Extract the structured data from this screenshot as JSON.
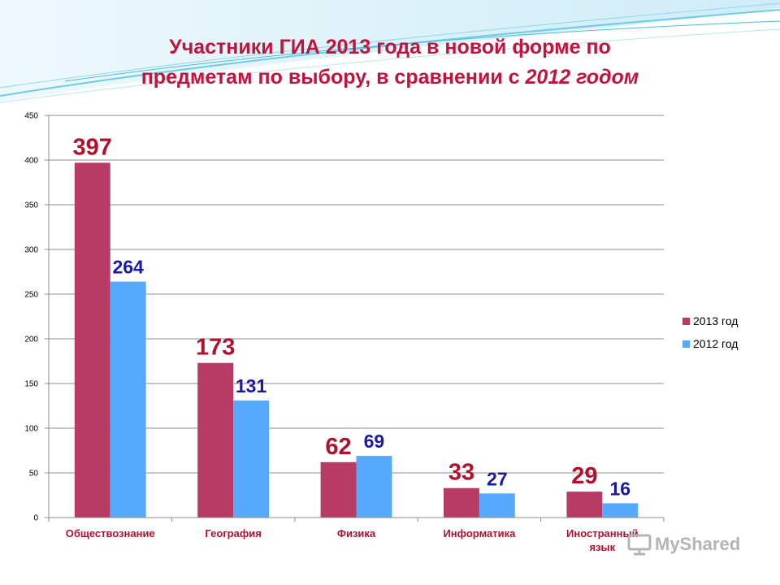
{
  "title": {
    "line1": "Участники ГИА 2013 года в новой форме по",
    "line2": "предметам   по выбору, в сравнении с ",
    "line2_italic": "2012 годом"
  },
  "colors": {
    "title": "#c0143c",
    "series_2013": "#b83b66",
    "series_2012": "#55aaff",
    "label_2013": "#b0122e",
    "label_2012": "#1a1aa0",
    "category_text": "#b0122e",
    "watermark": "#b4b4b4"
  },
  "chart_data": {
    "type": "bar",
    "categories": [
      "Обществознание",
      "География",
      "Физика",
      "Информатика",
      "Иностранный язык"
    ],
    "series": [
      {
        "name": "2013 год",
        "values": [
          397,
          173,
          62,
          33,
          29
        ]
      },
      {
        "name": "2012 год",
        "values": [
          264,
          131,
          69,
          27,
          16
        ]
      }
    ],
    "ylim": [
      0,
      450
    ],
    "yticks": [
      0,
      50,
      100,
      150,
      200,
      250,
      300,
      350,
      400,
      450
    ],
    "grid": true,
    "legend_position": "right"
  },
  "watermark": {
    "text": "MyShared",
    "icon": "presentation-board-icon"
  }
}
